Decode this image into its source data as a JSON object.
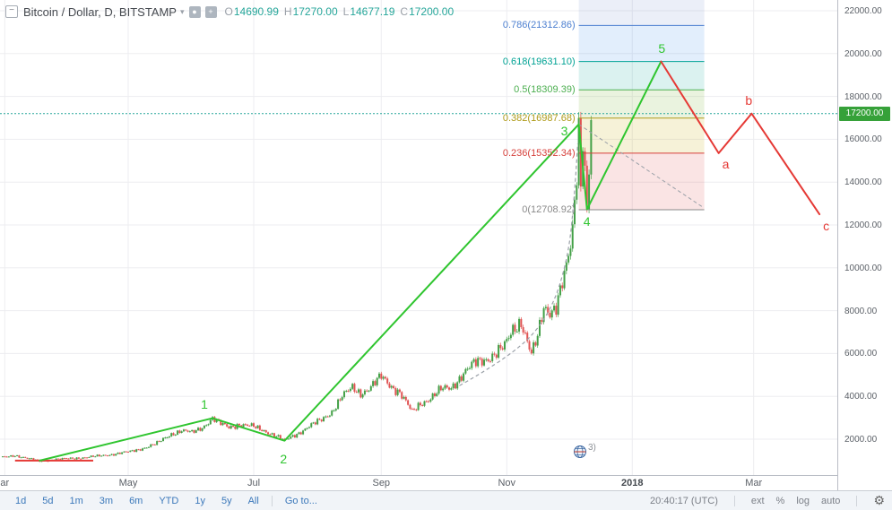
{
  "legend": {
    "collapse_glyph": "−",
    "symbol": "Bitcoin / Dollar, D, BITSTAMP",
    "caret": "▾",
    "icon1_glyph": "●",
    "icon2_glyph": "+",
    "ohlc": [
      {
        "k": "O",
        "v": "14690.99"
      },
      {
        "k": "H",
        "v": "17270.00"
      },
      {
        "k": "L",
        "v": "14677.19"
      },
      {
        "k": "C",
        "v": "17200.00"
      }
    ]
  },
  "toolbar": {
    "ranges": [
      "1d",
      "5d",
      "1m",
      "3m",
      "6m",
      "YTD",
      "1y",
      "5y",
      "All"
    ],
    "goto": "Go to...",
    "clock": "20:40:17 (UTC)",
    "ext": "ext",
    "percent": "%",
    "log": "log",
    "auto": "auto",
    "gear_glyph": "⚙"
  },
  "chart_data": {
    "type": "candlestick",
    "symbol": "Bitcoin / Dollar",
    "interval": "D",
    "exchange": "BITSTAMP",
    "ohlc": {
      "open": 14690.99,
      "high": 17270.0,
      "low": 14677.19,
      "close": 17200.0
    },
    "current_price": 17200.0,
    "current_price_label": "17200.00",
    "y_axis_range": [
      0,
      22500
    ],
    "y_tick_values": [
      22000,
      20000,
      18000,
      16000,
      14000,
      12000,
      10000,
      8000,
      6000,
      4000,
      2000
    ],
    "y_ticks": [
      "22000.00",
      "20000.00",
      "18000.00",
      "16000.00",
      "14000.00",
      "12000.00",
      "10000.00",
      "8000.00",
      "6000.00",
      "4000.00",
      "2000.00"
    ],
    "x_ticks": [
      {
        "label": "ar",
        "day": 1
      },
      {
        "label": "May",
        "day": 61
      },
      {
        "label": "Jul",
        "day": 122
      },
      {
        "label": "Sep",
        "day": 184
      },
      {
        "label": "Nov",
        "day": 245
      },
      {
        "label": "2018",
        "day": 306,
        "bold": true
      },
      {
        "label": "Mar",
        "day": 365
      }
    ],
    "price_anchors": [
      [
        0,
        1150
      ],
      [
        6,
        1250
      ],
      [
        12,
        1100
      ],
      [
        18,
        980
      ],
      [
        26,
        1060
      ],
      [
        36,
        1120
      ],
      [
        45,
        1190
      ],
      [
        55,
        1320
      ],
      [
        62,
        1420
      ],
      [
        68,
        1580
      ],
      [
        75,
        1800
      ],
      [
        82,
        2250
      ],
      [
        87,
        2400
      ],
      [
        92,
        2300
      ],
      [
        97,
        2550
      ],
      [
        102,
        2980
      ],
      [
        106,
        2700
      ],
      [
        110,
        2550
      ],
      [
        115,
        2700
      ],
      [
        121,
        2600
      ],
      [
        127,
        2400
      ],
      [
        132,
        2200
      ],
      [
        137,
        1930
      ],
      [
        143,
        2250
      ],
      [
        149,
        2600
      ],
      [
        155,
        2900
      ],
      [
        160,
        3300
      ],
      [
        165,
        4000
      ],
      [
        170,
        4380
      ],
      [
        174,
        4150
      ],
      [
        179,
        4450
      ],
      [
        184,
        4900
      ],
      [
        188,
        4550
      ],
      [
        193,
        4200
      ],
      [
        199,
        3250
      ],
      [
        203,
        3650
      ],
      [
        208,
        3950
      ],
      [
        213,
        4300
      ],
      [
        218,
        4400
      ],
      [
        224,
        5100
      ],
      [
        229,
        5500
      ],
      [
        234,
        5700
      ],
      [
        239,
        6000
      ],
      [
        244,
        6300
      ],
      [
        248,
        7100
      ],
      [
        252,
        7550
      ],
      [
        255,
        6600
      ],
      [
        257,
        5950
      ],
      [
        260,
        6700
      ],
      [
        263,
        8100
      ],
      [
        266,
        8000
      ],
      [
        269,
        8300
      ],
      [
        272,
        9300
      ],
      [
        274,
        9900
      ],
      [
        276,
        10900
      ],
      [
        277,
        11600
      ],
      [
        278,
        13000
      ],
      [
        279,
        14500
      ],
      [
        280,
        16600
      ],
      [
        281,
        14000
      ],
      [
        282,
        16300
      ],
      [
        283,
        14800
      ],
      [
        284,
        12850
      ],
      [
        285,
        14690
      ],
      [
        286,
        17200
      ]
    ],
    "candles_end_day": 286,
    "fib": {
      "zone": {
        "day_start": 280,
        "day_end": 341
      },
      "top_band": "rgba(90,125,195,0.12)",
      "levels": [
        {
          "ratio": "0.786",
          "value": 21312.86,
          "label": "0.786(21312.86)",
          "color": "#4c7fd0",
          "band": "rgba(62,140,235,0.15)"
        },
        {
          "ratio": "0.618",
          "value": 19631.1,
          "label": "0.618(19631.10)",
          "color": "#00a294",
          "band": "rgba(0,166,148,0.14)"
        },
        {
          "ratio": "0.5",
          "value": 18309.39,
          "label": "0.5(18309.39)",
          "color": "#4caf50",
          "band": "rgba(124,183,58,0.16)"
        },
        {
          "ratio": "0.382",
          "value": 16987.68,
          "label": "0.382(16987.68)",
          "color": "#af9b19",
          "band": "rgba(208,190,60,0.20)"
        },
        {
          "ratio": "0.236",
          "value": 15352.34,
          "label": "0.236(15352.34)",
          "color": "#d6403b",
          "band": "rgba(224,85,85,0.16)"
        },
        {
          "ratio": "0",
          "value": 12708.92,
          "label": "0(12708.92)",
          "color": "#8a8a8a",
          "band": null
        }
      ]
    },
    "waves": {
      "green": {
        "color": "#2fc52f",
        "points": [
          {
            "day": 18,
            "price": 1000
          },
          {
            "day": 102,
            "price": 2980,
            "label": "1"
          },
          {
            "day": 137,
            "price": 1930,
            "label": "2"
          },
          {
            "day": 280,
            "price": 16700,
            "label": "3"
          },
          {
            "day": 284,
            "price": 12730,
            "label": "4"
          },
          {
            "day": 320,
            "price": 19631,
            "label": "5"
          }
        ]
      },
      "red": {
        "color": "#e53935",
        "points": [
          {
            "day": 320,
            "price": 19631
          },
          {
            "day": 348,
            "price": 15352,
            "label": "a"
          },
          {
            "day": 364,
            "price": 17200,
            "label": "b"
          },
          {
            "day": 397,
            "price": 12500,
            "label": "c"
          }
        ]
      }
    },
    "drawings": {
      "red_hline": {
        "day1": 6,
        "day2": 44,
        "price": 1000,
        "color": "#e53935"
      },
      "dashed_curve": [
        [
          222,
          4500
        ],
        [
          248,
          5900
        ],
        [
          266,
          7800
        ],
        [
          275,
          10500
        ],
        [
          278,
          13500
        ],
        [
          279.5,
          15800
        ]
      ],
      "fib_diagonal": {
        "day1": 280,
        "price1": 16700,
        "day2": 340,
        "price2": 12850
      }
    },
    "ideas_badge": "3)"
  },
  "colors": {
    "up": "#43a047",
    "down": "#e05353",
    "grid": "#ededf0",
    "price_line": "#26a69a",
    "badge_bg": "#36a139",
    "dashed_gray": "#9aa0a8"
  }
}
